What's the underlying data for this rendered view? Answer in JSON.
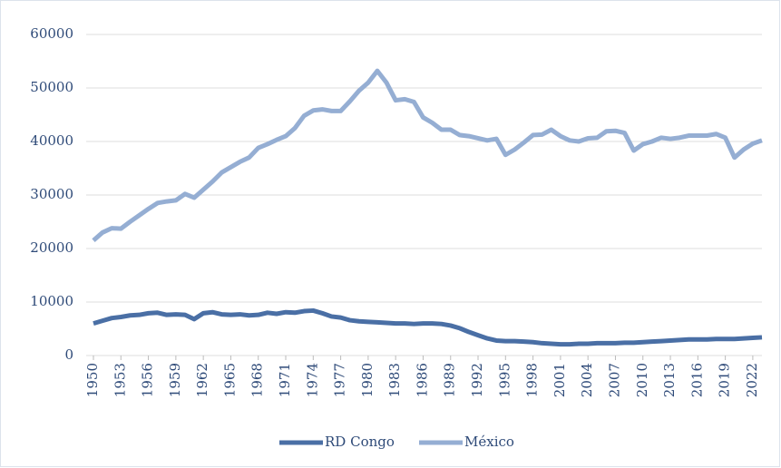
{
  "chart_data": {
    "type": "line",
    "x": [
      1950,
      1951,
      1952,
      1953,
      1954,
      1955,
      1956,
      1957,
      1958,
      1959,
      1960,
      1961,
      1962,
      1963,
      1964,
      1965,
      1966,
      1967,
      1968,
      1969,
      1970,
      1971,
      1972,
      1973,
      1974,
      1975,
      1976,
      1977,
      1978,
      1979,
      1980,
      1981,
      1982,
      1983,
      1984,
      1985,
      1986,
      1987,
      1988,
      1989,
      1990,
      1991,
      1992,
      1993,
      1994,
      1995,
      1996,
      1997,
      1998,
      1999,
      2000,
      2001,
      2002,
      2003,
      2004,
      2005,
      2006,
      2007,
      2008,
      2009,
      2010,
      2011,
      2012,
      2013,
      2014,
      2015,
      2016,
      2017,
      2018,
      2019,
      2020,
      2021,
      2022,
      2023
    ],
    "xlim": [
      1950,
      2023
    ],
    "xticks": [
      1950,
      1953,
      1956,
      1959,
      1962,
      1965,
      1968,
      1971,
      1974,
      1977,
      1980,
      1983,
      1986,
      1989,
      1992,
      1995,
      1998,
      2001,
      2004,
      2007,
      2010,
      2013,
      2016,
      2019,
      2022
    ],
    "ylim": [
      0,
      60000
    ],
    "yticks": [
      0,
      10000,
      20000,
      30000,
      40000,
      50000,
      60000
    ],
    "grid": true,
    "legend": "bottom",
    "series": [
      {
        "name": "RD Congo",
        "color": "#4a6fa5",
        "values": [
          6000,
          6500,
          7000,
          7200,
          7500,
          7600,
          7900,
          8000,
          7600,
          7700,
          7600,
          6800,
          7900,
          8100,
          7700,
          7600,
          7700,
          7500,
          7600,
          8000,
          7800,
          8100,
          8000,
          8300,
          8400,
          7900,
          7300,
          7100,
          6600,
          6400,
          6300,
          6200,
          6100,
          6000,
          6000,
          5900,
          6000,
          6000,
          5900,
          5600,
          5100,
          4400,
          3800,
          3200,
          2800,
          2700,
          2700,
          2600,
          2500,
          2300,
          2200,
          2100,
          2100,
          2200,
          2200,
          2300,
          2300,
          2300,
          2400,
          2400,
          2500,
          2600,
          2700,
          2800,
          2900,
          3000,
          3000,
          3000,
          3100,
          3100,
          3100,
          3200,
          3300,
          3400
        ]
      },
      {
        "name": "México",
        "color": "#95aed3",
        "values": [
          21500,
          23000,
          23800,
          23700,
          25000,
          26200,
          27400,
          28500,
          28800,
          29000,
          30200,
          29500,
          31000,
          32500,
          34200,
          35200,
          36200,
          37000,
          38800,
          39500,
          40300,
          41000,
          42500,
          44800,
          45800,
          46000,
          45700,
          45700,
          47500,
          49500,
          51000,
          53200,
          51000,
          47700,
          47900,
          47400,
          44500,
          43500,
          42200,
          42200,
          41200,
          41000,
          40600,
          40200,
          40500,
          37500,
          38500,
          39800,
          41200,
          41300,
          42200,
          41000,
          40200,
          40000,
          40600,
          40700,
          41900,
          42000,
          41600,
          38300,
          39500,
          40000,
          40700,
          40500,
          40700,
          41100,
          41100,
          41100,
          41400,
          40700,
          37000,
          38500,
          39600,
          40200
        ]
      }
    ]
  }
}
